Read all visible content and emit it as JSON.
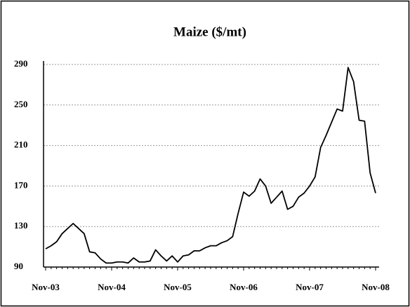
{
  "chart_data": {
    "type": "line",
    "title": "Maize ($/mt)",
    "categories": [
      "Nov-03",
      null,
      null,
      null,
      null,
      null,
      null,
      null,
      null,
      null,
      null,
      null,
      "Nov-04",
      null,
      null,
      null,
      null,
      null,
      null,
      null,
      null,
      null,
      null,
      null,
      "Nov-05",
      null,
      null,
      null,
      null,
      null,
      null,
      null,
      null,
      null,
      null,
      null,
      "Nov-06",
      null,
      null,
      null,
      null,
      null,
      null,
      null,
      null,
      null,
      null,
      null,
      "Nov-07",
      null,
      null,
      null,
      null,
      null,
      null,
      null,
      null,
      null,
      null,
      null,
      "Nov-08"
    ],
    "values": [
      108,
      111,
      115,
      123,
      128,
      133,
      128,
      123,
      105,
      104,
      98,
      94,
      94,
      95,
      95,
      94,
      99,
      95,
      95,
      96,
      107,
      101,
      96,
      101,
      95,
      101,
      102,
      106,
      106,
      109,
      111,
      111,
      114,
      116,
      120,
      143,
      164,
      160,
      165,
      177,
      170,
      153,
      159,
      165,
      147,
      150,
      159,
      163,
      170,
      179,
      208,
      220,
      233,
      246,
      244,
      287,
      273,
      235,
      234,
      183,
      163
    ],
    "color": "#000000",
    "ylim": [
      90,
      290
    ],
    "yticks": [
      90,
      130,
      170,
      210,
      250,
      290
    ],
    "grid": true
  }
}
